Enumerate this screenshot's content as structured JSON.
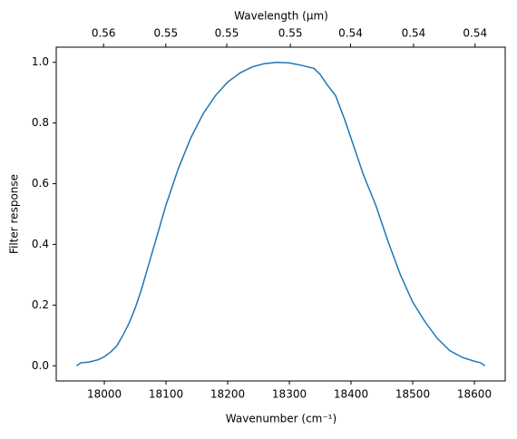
{
  "chart_data": {
    "type": "line",
    "xlabel": "Wavenumber (cm⁻¹)",
    "ylabel": "Filter response",
    "x2label": "Wavelength (μm)",
    "x": [
      17955,
      17962,
      17975,
      17990,
      18000,
      18010,
      18020,
      18030,
      18040,
      18050,
      18060,
      18070,
      18080,
      18090,
      18100,
      18120,
      18140,
      18160,
      18180,
      18200,
      18220,
      18240,
      18260,
      18280,
      18300,
      18320,
      18340,
      18350,
      18360,
      18375,
      18390,
      18400,
      18420,
      18440,
      18460,
      18480,
      18500,
      18520,
      18540,
      18560,
      18580,
      18600,
      18610,
      18617
    ],
    "series": [
      {
        "color": "#1f77b4",
        "values": [
          0.0,
          0.01,
          0.012,
          0.02,
          0.03,
          0.045,
          0.065,
          0.1,
          0.14,
          0.19,
          0.25,
          0.32,
          0.39,
          0.46,
          0.53,
          0.65,
          0.75,
          0.83,
          0.89,
          0.935,
          0.965,
          0.985,
          0.996,
          1.0,
          0.998,
          0.99,
          0.98,
          0.96,
          0.93,
          0.89,
          0.81,
          0.75,
          0.63,
          0.53,
          0.41,
          0.3,
          0.21,
          0.145,
          0.09,
          0.05,
          0.028,
          0.015,
          0.01,
          0.0
        ]
      }
    ],
    "xlim": [
      17922,
      18650
    ],
    "xticks": [
      18000,
      18100,
      18200,
      18300,
      18400,
      18500,
      18600
    ],
    "ylim": [
      -0.05,
      1.05
    ],
    "yticks": [
      {
        "value": 0,
        "label": "0.0"
      },
      0.2,
      0.4,
      0.6,
      0.8,
      {
        "value": 1,
        "label": "1.0"
      }
    ],
    "x2lim": [
      0.55798,
      0.53619
    ],
    "x2ticks": [
      {
        "value": 0.5556,
        "label": "0.56"
      },
      {
        "value": 0.5525,
        "label": "0.55"
      },
      {
        "value": 0.5495,
        "label": "0.55"
      },
      {
        "value": 0.5464,
        "label": "0.55"
      },
      {
        "value": 0.5435,
        "label": "0.54"
      },
      {
        "value": 0.5405,
        "label": "0.54"
      },
      {
        "value": 0.5376,
        "label": "0.54"
      }
    ]
  }
}
